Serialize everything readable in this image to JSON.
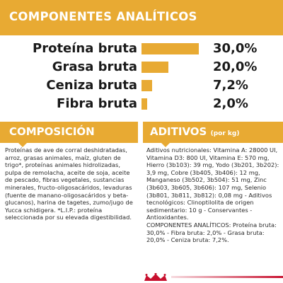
{
  "header": {
    "title": "COMPONENTES ANALÍTICOS"
  },
  "analytics": [
    {
      "label": "Proteína bruta",
      "value": "30,0%",
      "bar_fraction": 0.9
    },
    {
      "label": "Grasa bruta",
      "value": "20,0%",
      "bar_fraction": 0.42
    },
    {
      "label": "Ceniza bruta",
      "value": "7,2%",
      "bar_fraction": 0.17
    },
    {
      "label": "Fibra bruta",
      "value": "2,0%",
      "bar_fraction": 0.09
    }
  ],
  "composition": {
    "title": "COMPOSICIÓN",
    "text": "Proteínas de ave de corral deshidratadas, arroz, grasas animales, maíz, gluten de trigo*, proteínas animales hidrolizadas, pulpa de remolacha, aceite de soja, aceite de pescado, fibras vegetales, sustancias minerales, fructo-oligosacáridos, levaduras (fuente de manano-oligosacáridos y beta-glucanos), harina de tagetes, zumo/jugo de Yucca schidigera. *L.I.P.: proteína seleccionada por su elevada digestibilidad."
  },
  "additives": {
    "title": "ADITIVOS",
    "title_suffix": "(por kg)",
    "text": "Aditivos nutricionales: Vitamina A: 28000 UI, Vitamina D3: 800 UI, Vitamina E: 570 mg, Hierro (3b103): 39 mg, Yodo (3b201, 3b202): 3,9 mg, Cobre (3b405, 3b406): 12 mg, Manganeso (3b502, 3b504): 51 mg, Zinc (3b603, 3b605, 3b606): 107 mg, Selenio (3b801, 3b811, 3b812): 0,08 mg - Aditivos tecnológicos: Clinoptilolita de origen sedimentario: 10 g - Conservantes - Antioxidantes.",
    "components_note": "COMPONENTES ANALÍTICOS: Proteína bruta: 30,0% - Fibra bruta: 2,0% - Grasa bruta: 20,0% - Ceniza bruta: 7,2%."
  },
  "colors": {
    "accent": "#e8aa33",
    "brand_red": "#c8102e"
  },
  "footer": {
    "logo_icon": "royal-canin-crown-icon"
  }
}
